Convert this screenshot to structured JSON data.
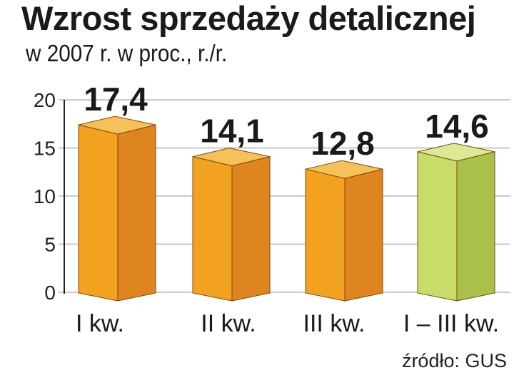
{
  "title": "Wzrost sprzedaży detalicznej",
  "subtitle": "w 2007 r. w proc., r./r.",
  "source": "źródło: GUS",
  "colors": {
    "orange_front": "#f2a21e",
    "orange_side": "#df8520",
    "orange_top": "#f6c158",
    "green_front": "#c8dc6a",
    "green_side": "#a9c14a",
    "green_top": "#dbe996",
    "grid": "#c9c9c9",
    "axis": "#222222"
  },
  "chart_data": {
    "type": "bar",
    "title": "Wzrost sprzedaży detalicznej",
    "subtitle": "w 2007 r. w proc., r./r.",
    "categories": [
      "I kw.",
      "II kw.",
      "III kw.",
      "I – III kw."
    ],
    "values": [
      17.4,
      14.1,
      12.8,
      14.6
    ],
    "value_labels": [
      "17,4",
      "14,1",
      "12,8",
      "14,6"
    ],
    "highlight": [
      false,
      false,
      false,
      true
    ],
    "ylim": [
      0,
      20
    ],
    "yticks": [
      0,
      5,
      10,
      15,
      20
    ],
    "grid": true,
    "xlabel": "",
    "ylabel": ""
  }
}
